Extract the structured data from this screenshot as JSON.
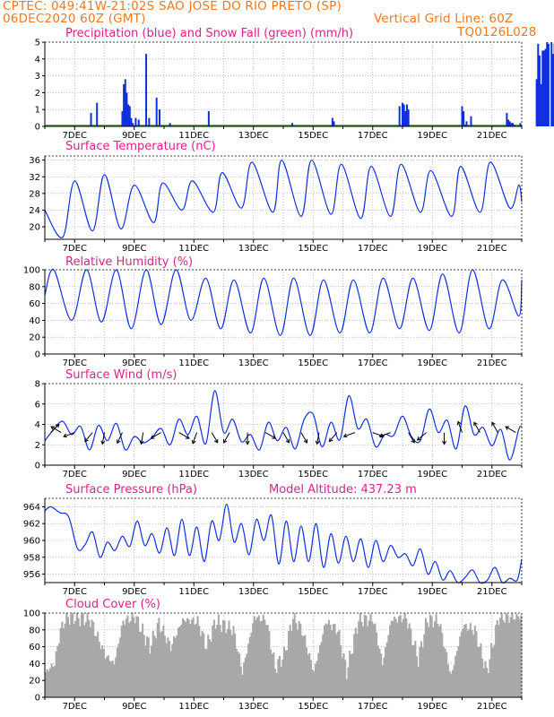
{
  "header": {
    "line1_left": "CPTEC:  049:41W-21:02S  SAO JOSE DO RIO PRETO (SP)",
    "line2_left": "06DEC2020 60Z (GMT)",
    "line2_right": "Vertical Grid Line: 60Z",
    "line3_right": "TQ0126L028"
  },
  "x_labels": [
    "7DEC",
    "9DEC",
    "11DEC",
    "13DEC",
    "15DEC",
    "17DEC",
    "19DEC",
    "21DEC"
  ],
  "chart_data": [
    {
      "type": "bar",
      "title": "Precipitation (blue) and Snow Fall (green) (mm/h)",
      "ylim": [
        0,
        5
      ],
      "yticks": [
        0,
        1,
        2,
        3,
        4,
        5
      ],
      "x_units": "days since 06DEC 00Z",
      "series": [
        {
          "name": "Precipitation",
          "color": "#1030e0",
          "x": [
            1.55,
            1.75,
            2.6,
            2.65,
            2.7,
            2.75,
            2.8,
            2.85,
            2.9,
            2.95,
            3.05,
            3.15,
            3.4,
            3.5,
            3.75,
            3.85,
            4.2,
            5.5,
            8.3,
            9.65,
            9.7,
            11.9,
            12.0,
            12.05,
            12.1,
            12.15,
            12.2,
            14.0,
            14.05,
            14.1,
            14.15,
            14.3,
            15.5,
            15.55,
            15.6,
            15.65,
            15.7,
            15.75,
            15.95,
            16.5,
            16.55,
            16.6,
            16.65,
            16.7,
            16.75,
            16.8,
            16.85,
            16.9,
            17.0,
            17.05,
            17.1
          ],
          "values": [
            0.8,
            1.4,
            0.9,
            2.5,
            2.8,
            2.0,
            1.3,
            1.2,
            0.5,
            0.2,
            0.5,
            0.4,
            4.3,
            0.5,
            1.7,
            1.0,
            0.2,
            0.9,
            0.2,
            0.5,
            0.3,
            1.2,
            1.4,
            1.3,
            0.9,
            1.3,
            1.0,
            1.2,
            0.9,
            0.1,
            0.3,
            0.6,
            0.8,
            0.4,
            0.3,
            0.2,
            0.2,
            0.1,
            0.2,
            2.8,
            4.9,
            4.2,
            2.5,
            4.5,
            4.5,
            4.6,
            5.0,
            4.9,
            5.0,
            4.3,
            4.9
          ]
        },
        {
          "name": "Snow Fall",
          "color": "#20a020",
          "baseline": 0.05
        }
      ]
    },
    {
      "type": "line",
      "title": "Surface Temperature (nC)",
      "ylim": [
        17,
        37
      ],
      "yticks": [
        20,
        24,
        28,
        32,
        36
      ],
      "color": "#1030e0",
      "min_temps": [
        17.5,
        19.0,
        19.5,
        21,
        24,
        23.5,
        24.5,
        23.5,
        22.5,
        23,
        22,
        22.5,
        23.5,
        22.5,
        23.5,
        24.5
      ],
      "max_temps": [
        31,
        32.5,
        30,
        30.5,
        31,
        33,
        35.5,
        36,
        36,
        35,
        34.5,
        35,
        33.5,
        34.5,
        35.5,
        30
      ],
      "min_x": [
        0.6,
        1.6,
        2.55,
        3.65,
        4.6,
        5.65,
        6.6,
        7.65,
        8.6,
        9.6,
        10.6,
        11.6,
        12.6,
        13.65,
        14.6,
        15.6
      ],
      "max_x": [
        1.0,
        2.0,
        3.0,
        3.95,
        4.95,
        5.95,
        6.95,
        7.95,
        8.95,
        9.95,
        10.95,
        11.95,
        12.95,
        13.95,
        14.95,
        15.9
      ]
    },
    {
      "type": "line",
      "title": "Relative Humidity (%)",
      "ylim": [
        0,
        100
      ],
      "yticks": [
        0,
        20,
        40,
        60,
        80,
        100
      ],
      "color": "#1030e0",
      "min_x": [
        0.9,
        1.9,
        2.9,
        3.9,
        4.9,
        5.9,
        6.9,
        7.9,
        8.9,
        9.9,
        10.9,
        11.9,
        12.9,
        13.9,
        14.9,
        15.9
      ],
      "min_vals": [
        40,
        38,
        30,
        35,
        40,
        30,
        25,
        22,
        22,
        25,
        25,
        30,
        28,
        25,
        30,
        45
      ],
      "max_x": [
        0.3,
        1.4,
        2.4,
        3.4,
        4.4,
        5.4,
        6.35,
        7.35,
        8.35,
        9.35,
        10.35,
        11.35,
        12.35,
        13.35,
        14.35,
        15.35
      ],
      "max_vals": [
        100,
        100,
        100,
        100,
        100,
        90,
        88,
        90,
        90,
        88,
        88,
        90,
        90,
        95,
        100,
        88
      ]
    },
    {
      "type": "line",
      "title": "Surface Wind (m/s)",
      "ylim": [
        0,
        8
      ],
      "yticks": [
        0,
        2,
        4,
        6,
        8
      ],
      "color": "#1030e0",
      "x": [
        0,
        0.3,
        0.6,
        0.9,
        1.2,
        1.5,
        1.8,
        2.1,
        2.4,
        2.7,
        3.0,
        3.3,
        3.6,
        3.9,
        4.2,
        4.5,
        4.8,
        5.1,
        5.4,
        5.7,
        6.0,
        6.3,
        6.6,
        6.9,
        7.2,
        7.5,
        7.8,
        8.1,
        8.4,
        8.7,
        9.0,
        9.3,
        9.6,
        9.9,
        10.2,
        10.5,
        10.8,
        11.1,
        11.4,
        11.7,
        12.0,
        12.3,
        12.6,
        12.9,
        13.2,
        13.5,
        13.8,
        14.1,
        14.4,
        14.7,
        15.0,
        15.3,
        15.6,
        15.9,
        16.0
      ],
      "values": [
        2.4,
        3.5,
        4.3,
        3.0,
        3.8,
        1.5,
        3.9,
        2.4,
        4.1,
        1.5,
        2.8,
        2.2,
        2.7,
        3.6,
        2.0,
        4.5,
        3.0,
        4.8,
        2.1,
        7.3,
        3.2,
        4.5,
        2.3,
        3.0,
        1.5,
        4.2,
        2.4,
        3.7,
        1.6,
        4.5,
        5.0,
        1.8,
        4.2,
        2.5,
        6.8,
        3.6,
        4.5,
        1.8,
        3.0,
        2.9,
        4.8,
        2.8,
        2.4,
        5.5,
        3.2,
        4.4,
        1.6,
        5.8,
        3.0,
        3.7,
        1.9,
        3.5,
        0.5,
        3.5,
        3.8
      ],
      "arrows": [
        [
          0.2,
          45
        ],
        [
          0.55,
          150
        ],
        [
          1.0,
          200
        ],
        [
          1.6,
          230
        ],
        [
          2.0,
          260
        ],
        [
          2.6,
          245
        ],
        [
          3.3,
          260
        ],
        [
          3.9,
          210
        ],
        [
          4.5,
          330
        ],
        [
          5.1,
          250
        ],
        [
          5.6,
          300
        ],
        [
          6.2,
          240
        ],
        [
          6.8,
          270
        ],
        [
          7.4,
          330
        ],
        [
          8.0,
          300
        ],
        [
          8.6,
          300
        ],
        [
          9.2,
          260
        ],
        [
          9.8,
          230
        ],
        [
          10.4,
          200
        ],
        [
          11.0,
          340
        ],
        [
          11.6,
          200
        ],
        [
          12.2,
          300
        ],
        [
          12.8,
          220
        ],
        [
          13.4,
          270
        ],
        [
          14.0,
          110
        ],
        [
          14.6,
          120
        ],
        [
          15.2,
          120
        ],
        [
          15.8,
          150
        ]
      ]
    },
    {
      "type": "line",
      "title": "Surface Pressure (hPa)",
      "annotation": "Model Altitude: 437.23 m",
      "ylim": [
        955,
        965
      ],
      "yticks": [
        956,
        958,
        960,
        962,
        964
      ],
      "color": "#1030e0",
      "x": [
        0,
        0.2,
        0.5,
        0.8,
        1.1,
        1.35,
        1.6,
        1.85,
        2.1,
        2.35,
        2.6,
        2.85,
        3.1,
        3.35,
        3.6,
        3.85,
        4.1,
        4.35,
        4.6,
        4.85,
        5.1,
        5.35,
        5.6,
        5.85,
        6.1,
        6.35,
        6.6,
        6.85,
        7.1,
        7.35,
        7.6,
        7.85,
        8.1,
        8.35,
        8.6,
        8.85,
        9.1,
        9.35,
        9.6,
        9.85,
        10.1,
        10.35,
        10.6,
        10.85,
        11.1,
        11.35,
        11.6,
        11.85,
        12.1,
        12.35,
        12.6,
        12.85,
        13.1,
        13.35,
        13.6,
        13.85,
        14.1,
        14.35,
        14.6,
        14.85,
        15.1,
        15.35,
        15.6,
        15.85,
        16.0
      ],
      "values": [
        963.5,
        964,
        963.3,
        962.8,
        959,
        959.5,
        961,
        958,
        959.8,
        958.8,
        960.5,
        959.3,
        962.3,
        959.4,
        960.8,
        958.5,
        961.5,
        958.2,
        962.5,
        958.2,
        961.6,
        957.5,
        962.3,
        960,
        964.3,
        959.8,
        962,
        958.3,
        962.5,
        960,
        963,
        957.2,
        962.3,
        957.5,
        961.7,
        957.5,
        962,
        956.8,
        960.8,
        957.3,
        960.5,
        957.5,
        960.2,
        956.8,
        960,
        957.5,
        959.4,
        958,
        958.4,
        957,
        959,
        956,
        957.5,
        955.3,
        956.4,
        955,
        955.6,
        956.5,
        955,
        955.3,
        956.8,
        954.8,
        955.5,
        955.3,
        957.8
      ]
    },
    {
      "type": "bar",
      "title": "Cloud Cover (%)",
      "ylim": [
        0,
        100
      ],
      "yticks": [
        0,
        20,
        40,
        60,
        80,
        100
      ],
      "color": "#a8a8a8",
      "x_step": 0.05,
      "values_pattern": "diurnal",
      "profile": [
        [
          0,
          30
        ],
        [
          0.3,
          40
        ],
        [
          0.5,
          80
        ],
        [
          0.7,
          95
        ],
        [
          1.0,
          95
        ],
        [
          1.5,
          92
        ],
        [
          2.0,
          50
        ],
        [
          2.3,
          40
        ],
        [
          2.6,
          90
        ],
        [
          3.0,
          96
        ],
        [
          3.5,
          60
        ],
        [
          3.8,
          88
        ],
        [
          4.2,
          60
        ],
        [
          4.6,
          92
        ],
        [
          5.1,
          90
        ],
        [
          5.4,
          60
        ],
        [
          5.7,
          90
        ],
        [
          6.3,
          80
        ],
        [
          6.6,
          30
        ],
        [
          7.0,
          95
        ],
        [
          7.4,
          92
        ],
        [
          7.7,
          35
        ],
        [
          8.0,
          50
        ],
        [
          8.3,
          95
        ],
        [
          8.6,
          80
        ],
        [
          9.0,
          30
        ],
        [
          9.4,
          90
        ],
        [
          9.8,
          80
        ],
        [
          10.1,
          30
        ],
        [
          10.5,
          92
        ],
        [
          11.0,
          92
        ],
        [
          11.3,
          40
        ],
        [
          11.6,
          92
        ],
        [
          12.1,
          95
        ],
        [
          12.5,
          45
        ],
        [
          12.8,
          92
        ],
        [
          13.2,
          90
        ],
        [
          13.6,
          25
        ],
        [
          14.0,
          85
        ],
        [
          14.4,
          80
        ],
        [
          14.8,
          30
        ],
        [
          15.2,
          95
        ],
        [
          15.6,
          95
        ],
        [
          16.0,
          96
        ]
      ]
    }
  ]
}
